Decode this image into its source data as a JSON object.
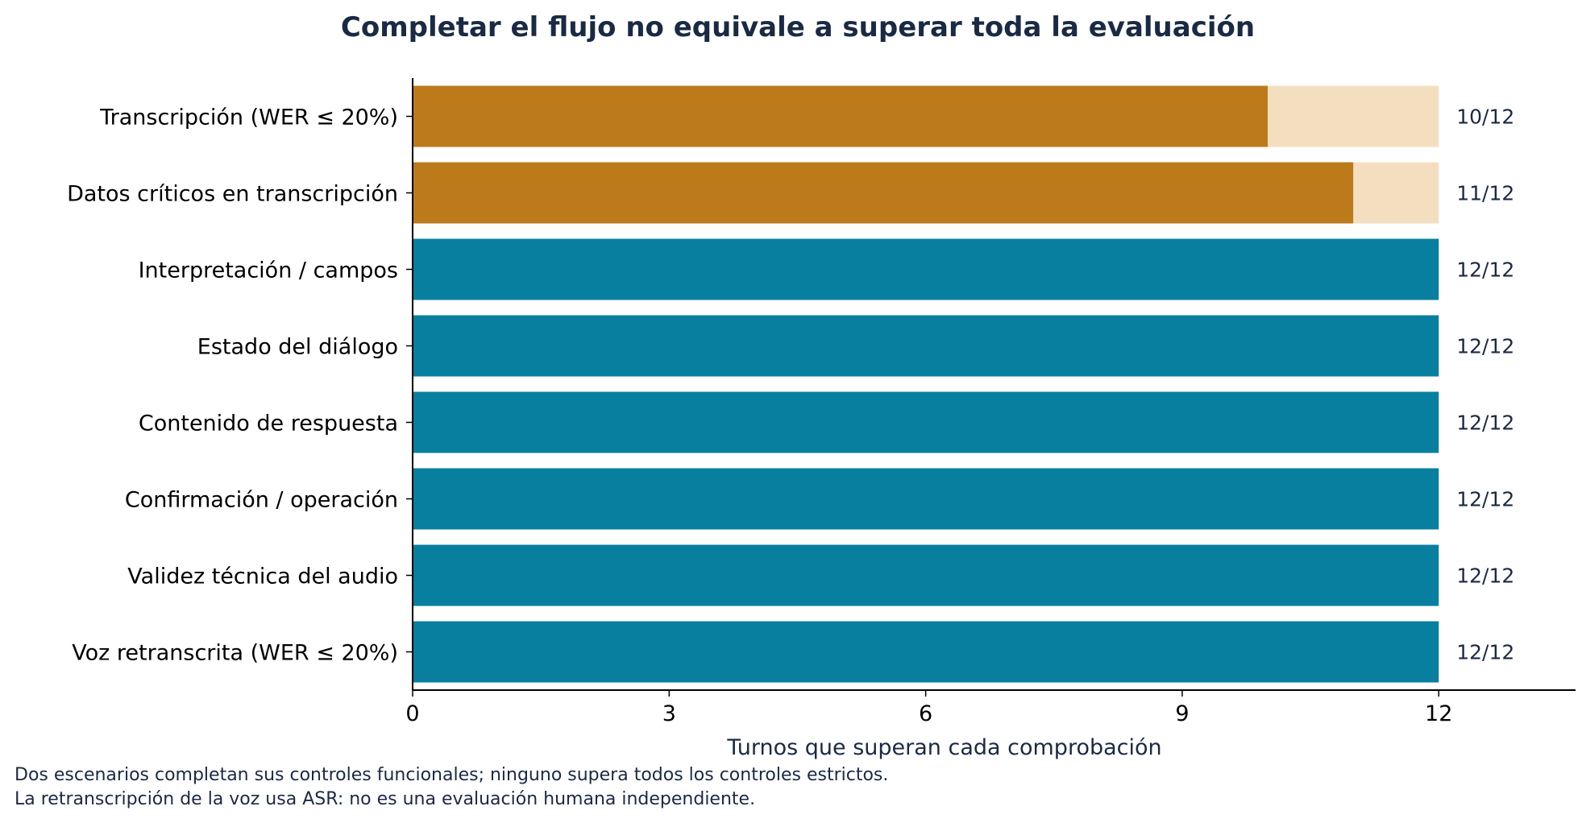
{
  "chart_data": {
    "type": "bar",
    "orientation": "horizontal",
    "title": "Completar el flujo no equivale a superar toda la evaluación",
    "xlabel": "Turnos que superan cada comprobación",
    "ylabel": "",
    "xlim": [
      0,
      13.6
    ],
    "xticks": [
      0,
      3,
      6,
      9,
      12
    ],
    "total": 12,
    "grid": false,
    "legend": "none",
    "categories": [
      "Transcripción (WER ≤ 20%)",
      "Datos críticos en transcripción",
      "Interpretación / campos",
      "Estado del diálogo",
      "Contenido de respuesta",
      "Confirmación / operación",
      "Validez técnica del audio",
      "Voz retranscrita (WER ≤ 20%)"
    ],
    "values": [
      10,
      11,
      12,
      12,
      12,
      12,
      12,
      12
    ],
    "value_labels": [
      "10/12",
      "11/12",
      "12/12",
      "12/12",
      "12/12",
      "12/12",
      "12/12",
      "12/12"
    ],
    "colors": {
      "complete": "#087f9e",
      "partial": "#bc7a1a",
      "remainder": "#f3dfc0",
      "text": "#1a2a44"
    }
  },
  "notes": [
    "Dos escenarios completan sus controles funcionales; ninguno supera todos los controles estrictos.",
    "La retranscripción de la voz usa ASR: no es una evaluación humana independiente."
  ]
}
